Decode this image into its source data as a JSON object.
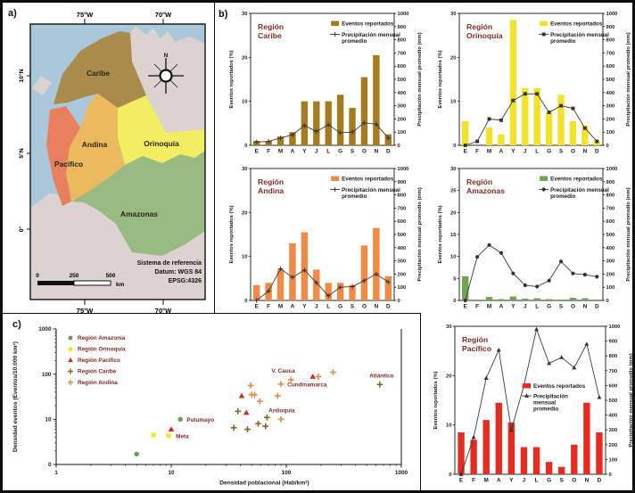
{
  "panels": {
    "a": "a)",
    "b": "b)",
    "c": "c)"
  },
  "map": {
    "regions": {
      "caribe": "Caribe",
      "andina": "Andina",
      "orinoquia": "Orinoquía",
      "pacifico": "Pacífico",
      "amazonas": "Amazonas"
    },
    "top_ticks": [
      "75°W",
      "70°W"
    ],
    "bottom_ticks": [
      "75°W",
      "70°W"
    ],
    "left_ticks": [
      "10°N",
      "5°N",
      "0°"
    ],
    "compass_n": "N",
    "scale_ticks": [
      "0",
      "250",
      "500"
    ],
    "scale_unit": "km",
    "reference": [
      "Sistema de referencia",
      "Datum: WGS 84",
      "EPSG:4326"
    ],
    "colors": {
      "ocean": "#a9c8db",
      "neighbor": "#dcd2d0",
      "caribe": "#a98b4b",
      "andina": "#ecba5e",
      "orinoquia": "#f1ee62",
      "pacifico": "#e8805d",
      "amazonas": "#99bb82"
    }
  },
  "months": [
    "E",
    "F",
    "M",
    "A",
    "Y",
    "J",
    "L",
    "G",
    "S",
    "O",
    "N",
    "D"
  ],
  "monthly_axis": {
    "left_label": "Eventos reportados (%)",
    "right_label": "Precipitación mensual promedio (mm)",
    "right_ticks": [
      0,
      100,
      200,
      300,
      400,
      500,
      600,
      700,
      800,
      900,
      1000
    ],
    "left_ylim": [
      0,
      30
    ],
    "right_ylim": [
      0,
      1000
    ]
  },
  "legend": {
    "bars": "Eventos reportados",
    "line2": [
      "Precipitación mensual",
      "promedio"
    ],
    "line3": [
      "Precipitación",
      "mensual",
      "promedio"
    ]
  },
  "colors": {
    "title": "#7b2d22",
    "line": "#3a3a3a",
    "axis": "#111111",
    "scatter_label": "#7b2d22"
  },
  "chart_data": [
    {
      "id": "caribe",
      "type": "bar",
      "title": [
        "Región",
        "Caribe"
      ],
      "bar_color": "#a57b1f",
      "marker": "plus",
      "left_ticks": [
        0,
        10,
        20,
        30
      ],
      "bars": [
        1,
        1,
        2,
        3,
        10,
        10,
        10,
        11.5,
        8.5,
        15.5,
        20.5,
        2.5
      ],
      "line": [
        25,
        30,
        55,
        80,
        150,
        105,
        155,
        95,
        100,
        170,
        160,
        55
      ]
    },
    {
      "id": "orinoquia",
      "type": "bar",
      "title": [
        "Región",
        "Orinoquía"
      ],
      "bar_color": "#f2e32a",
      "marker": "square",
      "left_ticks": [
        0,
        10,
        20,
        30
      ],
      "bars": [
        5.5,
        0,
        4,
        2.5,
        28.5,
        13,
        13,
        7.5,
        11.5,
        5.5,
        4.5,
        1
      ],
      "line": [
        0,
        30,
        200,
        190,
        340,
        390,
        390,
        250,
        300,
        280,
        130,
        30
      ]
    },
    {
      "id": "andina",
      "type": "bar",
      "title": [
        "Región",
        "Andina"
      ],
      "bar_color": "#f08a44",
      "marker": "plus",
      "left_ticks": [
        0,
        10,
        20,
        30
      ],
      "bars": [
        3.5,
        4,
        7,
        13,
        15.5,
        7,
        4,
        4,
        3.5,
        12.5,
        16.5,
        5.5
      ],
      "line": [
        0,
        70,
        240,
        175,
        230,
        135,
        35,
        100,
        105,
        150,
        200,
        140
      ]
    },
    {
      "id": "amazonas",
      "type": "bar",
      "title": [
        "Región",
        "Amazonas"
      ],
      "bar_color": "#6fa650",
      "marker": "circle",
      "left_ticks": [
        0,
        5,
        10,
        15,
        20,
        25,
        30
      ],
      "bars": [
        5.5,
        0.2,
        0.8,
        0.3,
        0.9,
        0.4,
        0.5,
        0.3,
        0.2,
        0.6,
        0.5,
        0.2
      ],
      "line": [
        0,
        330,
        420,
        360,
        205,
        115,
        105,
        150,
        295,
        205,
        195,
        180
      ]
    },
    {
      "id": "pacifico",
      "type": "bar",
      "title": [
        "Región",
        "Pacífico"
      ],
      "bar_color": "#e62c22",
      "marker": "triangle",
      "legend_pos": "middle",
      "left_ticks": [
        0,
        10,
        20,
        30
      ],
      "bars": [
        8.5,
        7,
        11,
        14.5,
        10.5,
        5.5,
        5.5,
        2.5,
        1.5,
        6,
        14.5,
        8.5
      ],
      "line": [
        0,
        250,
        650,
        840,
        300,
        600,
        980,
        750,
        790,
        720,
        880,
        520
      ]
    },
    {
      "id": "density",
      "type": "scatter",
      "xlabel": "Densidad poblacional (Hab/km²)",
      "ylabel": "Densidad eventos (Eventos/10.000 km²)",
      "x_ticks": [
        "1",
        "10",
        "100",
        "1000"
      ],
      "y_ticks": [
        "0",
        "10",
        "100",
        "1000"
      ],
      "xlim": [
        1,
        1000
      ],
      "ylim": [
        1,
        1000
      ],
      "legend": [
        {
          "label": "Región Amazonía",
          "marker": "circle",
          "color": "#64a14c"
        },
        {
          "label": "Región Orinoquía",
          "marker": "square",
          "color": "#f5e32c"
        },
        {
          "label": "Región Pacífico",
          "marker": "triangle",
          "color": "#d3281f"
        },
        {
          "label": "Región Caribe",
          "marker": "plus",
          "color": "#8a6425"
        },
        {
          "label": "Región Andina",
          "marker": "plus",
          "color": "#e58a48"
        }
      ],
      "series": [
        {
          "name": "Región Amazonía",
          "marker": "circle",
          "color": "#64a14c",
          "points": [
            {
              "x": 5,
              "y": 1.7
            },
            {
              "x": 12,
              "y": 10,
              "label": "Putumayo",
              "label_dx": 7,
              "label_dy": 2.5
            }
          ]
        },
        {
          "name": "Región Orinoquía",
          "marker": "square",
          "color": "#f5e32c",
          "points": [
            {
              "x": 7,
              "y": 4.5
            },
            {
              "x": 9.5,
              "y": 4.3,
              "label": "Meta",
              "label_dx": 8,
              "label_dy": 2.5
            }
          ]
        },
        {
          "name": "Región Pacífico",
          "marker": "triangle",
          "color": "#d3281f",
          "points": [
            {
              "x": 10,
              "y": 6
            },
            {
              "x": 41,
              "y": 33
            },
            {
              "x": 45,
              "y": 14
            },
            {
              "x": 170,
              "y": 88
            }
          ]
        },
        {
          "name": "Región Caribe",
          "marker": "plus",
          "color": "#8a6425",
          "points": [
            {
              "x": 35,
              "y": 6.5
            },
            {
              "x": 38,
              "y": 15
            },
            {
              "x": 46,
              "y": 6
            },
            {
              "x": 57,
              "y": 8
            },
            {
              "x": 66,
              "y": 7
            },
            {
              "x": 68,
              "y": 11
            },
            {
              "x": 650,
              "y": 59,
              "label": "Atlántico",
              "label_dx": 2,
              "label_dy": -8,
              "label_anchor": "middle"
            }
          ]
        },
        {
          "name": "Región Andina",
          "marker": "plus",
          "color": "#e58a48",
          "points": [
            {
              "x": 49,
              "y": 56
            },
            {
              "x": 50,
              "y": 35
            },
            {
              "x": 53,
              "y": 35
            },
            {
              "x": 59,
              "y": 25
            },
            {
              "x": 84,
              "y": 33
            },
            {
              "x": 90,
              "y": 60,
              "label": "Cundinamarca",
              "label_dx": 7,
              "label_dy": 2.5
            },
            {
              "x": 90,
              "y": 10,
              "label": "Antioquia",
              "label_dx": -14,
              "label_dy": -8
            },
            {
              "x": 110,
              "y": 75,
              "label": "V. Cauca",
              "label_dx": -22,
              "label_dy": -8
            },
            {
              "x": 190,
              "y": 88
            },
            {
              "x": 255,
              "y": 110
            }
          ]
        }
      ]
    }
  ]
}
